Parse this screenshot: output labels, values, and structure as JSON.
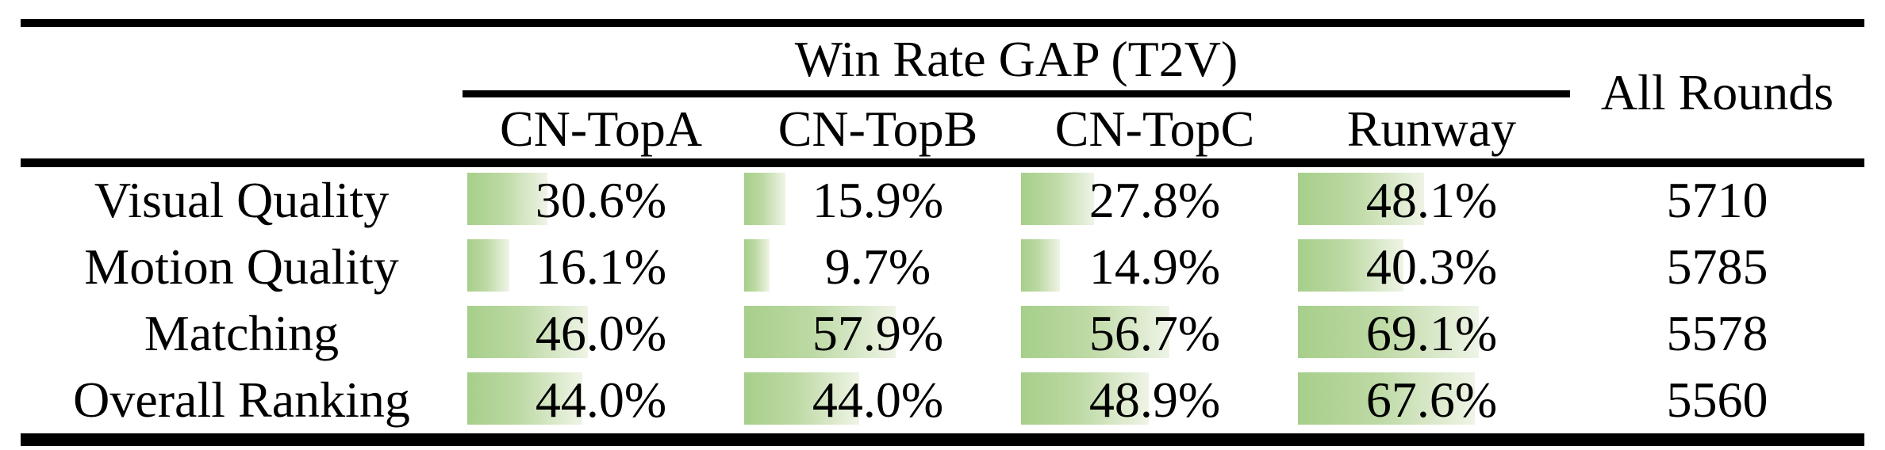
{
  "table": {
    "group_header": "Win Rate GAP (T2V)",
    "all_rounds_header": "All Rounds",
    "model_columns": [
      "CN-TopA",
      "CN-TopB",
      "CN-TopC",
      "Runway"
    ],
    "rows": [
      {
        "label": "Visual Quality",
        "values": [
          "30.6%",
          "15.9%",
          "27.8%",
          "48.1%"
        ],
        "bar_percents": [
          30.6,
          15.9,
          27.8,
          48.1
        ],
        "all_rounds": "5710"
      },
      {
        "label": "Motion Quality",
        "values": [
          "16.1%",
          "9.7%",
          "14.9%",
          "40.3%"
        ],
        "bar_percents": [
          16.1,
          9.7,
          14.9,
          40.3
        ],
        "all_rounds": "5785"
      },
      {
        "label": "Matching",
        "values": [
          "46.0%",
          "57.9%",
          "56.7%",
          "69.1%"
        ],
        "bar_percents": [
          46.0,
          57.9,
          56.7,
          69.1
        ],
        "all_rounds": "5578"
      },
      {
        "label": "Overall Ranking",
        "values": [
          "44.0%",
          "44.0%",
          "48.9%",
          "67.6%"
        ],
        "bar_percents": [
          44.0,
          44.0,
          48.9,
          67.6
        ],
        "all_rounds": "5560"
      }
    ],
    "colors": {
      "bar_gradient_start": "#a6cf8a",
      "bar_gradient_mid": "#bdd9a4",
      "bar_gradient_end": "#eff4e6",
      "rule": "#000000",
      "text": "#000000",
      "background": "#ffffff"
    }
  },
  "chart_data": {
    "type": "table",
    "title": "Win Rate GAP (T2V)",
    "categories": [
      "Visual Quality",
      "Motion Quality",
      "Matching",
      "Overall Ranking"
    ],
    "series": [
      {
        "name": "CN-TopA",
        "unit": "%",
        "values": [
          30.6,
          16.1,
          46.0,
          44.0
        ]
      },
      {
        "name": "CN-TopB",
        "unit": "%",
        "values": [
          15.9,
          9.7,
          57.9,
          44.0
        ]
      },
      {
        "name": "CN-TopC",
        "unit": "%",
        "values": [
          27.8,
          14.9,
          56.7,
          48.9
        ]
      },
      {
        "name": "Runway",
        "unit": "%",
        "values": [
          48.1,
          40.3,
          69.1,
          67.6
        ]
      },
      {
        "name": "All Rounds",
        "unit": "rounds",
        "values": [
          5710,
          5785,
          5578,
          5560
        ]
      }
    ],
    "layout": {
      "bars": "horizontal in-cell data bars, width proportional to percent of column width",
      "bar_scale_max_percent": 100
    }
  }
}
